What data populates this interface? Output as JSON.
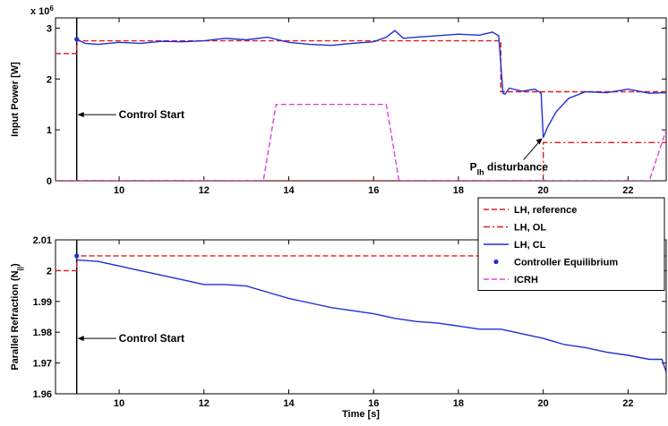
{
  "chart_data": [
    {
      "type": "line",
      "ylabel": "Input Power [W]",
      "y_exponent_label": "x 10",
      "y_exponent_power": "6",
      "xlim": [
        8.5,
        22.9
      ],
      "ylim": [
        0,
        3200000.0
      ],
      "xticks": [
        "10",
        "12",
        "14",
        "16",
        "18",
        "20",
        "22"
      ],
      "yticks": [
        "0",
        "1",
        "2",
        "3"
      ],
      "grid": false,
      "series": [
        {
          "name": "LH, reference",
          "color": "#e41a1c",
          "style": "dashed",
          "x": [
            8.5,
            9.0,
            9.0,
            19.0,
            19.0,
            22.9
          ],
          "y": [
            2500000.0,
            2500000.0,
            2750000.0,
            2750000.0,
            1750000.0,
            1750000.0
          ]
        },
        {
          "name": "LH, OL",
          "color": "#e41a1c",
          "style": "dashdot",
          "x": [
            8.5,
            20.0,
            20.0,
            22.9
          ],
          "y": [
            0,
            0,
            750000.0,
            750000.0
          ]
        },
        {
          "name": "LH, CL",
          "color": "#1f2fd6",
          "style": "solid",
          "x": [
            9.0,
            9.2,
            9.5,
            10.0,
            10.5,
            11.0,
            11.5,
            12.0,
            12.5,
            13.0,
            13.5,
            14.0,
            14.5,
            15.0,
            15.5,
            16.0,
            16.3,
            16.5,
            16.7,
            17.0,
            17.5,
            18.0,
            18.5,
            18.8,
            18.95,
            19.0,
            19.05,
            19.1,
            19.2,
            19.5,
            19.8,
            19.95,
            20.0,
            20.1,
            20.3,
            20.6,
            21.0,
            21.5,
            22.0,
            22.5,
            22.9
          ],
          "y": [
            2780000.0,
            2700000.0,
            2680000.0,
            2720000.0,
            2700000.0,
            2740000.0,
            2730000.0,
            2750000.0,
            2800000.0,
            2770000.0,
            2820000.0,
            2720000.0,
            2680000.0,
            2660000.0,
            2700000.0,
            2730000.0,
            2820000.0,
            2950000.0,
            2800000.0,
            2820000.0,
            2850000.0,
            2880000.0,
            2860000.0,
            2920000.0,
            2850000.0,
            2300000.0,
            1720000.0,
            1700000.0,
            1820000.0,
            1760000.0,
            1800000.0,
            1720000.0,
            850000.0,
            1050000.0,
            1350000.0,
            1620000.0,
            1750000.0,
            1730000.0,
            1800000.0,
            1720000.0,
            1730000.0
          ]
        },
        {
          "name": "ICRH",
          "color": "#e040e0",
          "style": "dashed",
          "x": [
            8.5,
            13.4,
            13.7,
            16.3,
            16.6,
            22.5,
            22.9
          ],
          "y": [
            0,
            0,
            1500000.0,
            1500000.0,
            0,
            0,
            1000000.0
          ]
        }
      ],
      "markers": [
        {
          "name": "Controller Equilibrium",
          "x": 9.0,
          "y": 2780000.0
        }
      ],
      "annotations": [
        {
          "text": "Control Start",
          "x": 9.0,
          "y": 1300000.0
        },
        {
          "text": "P",
          "subscript": "lh",
          "suffix": " disturbance",
          "x": 20.0,
          "y": 870000.0
        }
      ]
    },
    {
      "type": "line",
      "xlabel": "Time [s]",
      "ylabel": "Parallel Refraction (N",
      "ylabel_subscript": "||",
      "ylabel_suffix": ")",
      "xlim": [
        8.5,
        22.9
      ],
      "ylim": [
        1.96,
        2.01
      ],
      "xticks": [
        "10",
        "12",
        "14",
        "16",
        "18",
        "20",
        "22"
      ],
      "yticks": [
        "1.96",
        "1.97",
        "1.98",
        "1.99",
        "2",
        "2.01"
      ],
      "grid": false,
      "series": [
        {
          "name": "LH, reference",
          "color": "#e41a1c",
          "style": "dashed",
          "x": [
            8.5,
            9.0,
            9.0,
            22.9
          ],
          "y": [
            2.0,
            2.0,
            2.0048,
            2.0048
          ]
        },
        {
          "name": "LH, CL",
          "color": "#1f2fd6",
          "style": "solid",
          "x": [
            9.0,
            9.5,
            10.0,
            10.5,
            11.0,
            11.5,
            12.0,
            12.5,
            13.0,
            13.5,
            14.0,
            14.5,
            15.0,
            15.5,
            16.0,
            16.5,
            17.0,
            17.5,
            18.0,
            18.5,
            19.0,
            19.5,
            20.0,
            20.5,
            21.0,
            21.5,
            22.0,
            22.5,
            22.8,
            22.9
          ],
          "y": [
            2.0035,
            2.003,
            2.0015,
            2.0,
            1.9985,
            1.997,
            1.9955,
            1.9955,
            1.995,
            1.993,
            1.991,
            1.9895,
            1.988,
            1.987,
            1.986,
            1.9845,
            1.9835,
            1.983,
            1.982,
            1.981,
            1.981,
            1.9795,
            1.978,
            1.976,
            1.975,
            1.9735,
            1.9725,
            1.9712,
            1.9712,
            1.967
          ]
        }
      ],
      "markers": [
        {
          "name": "Controller Equilibrium",
          "x": 9.0,
          "y": 2.0048
        }
      ],
      "annotations": [
        {
          "text": "Control Start",
          "x": 9.0,
          "y": 1.978
        }
      ]
    }
  ],
  "legend": {
    "placement": "top-right of lower plot",
    "entries": [
      {
        "label": "LH, reference",
        "color": "#e41a1c",
        "style": "dashed"
      },
      {
        "label": "LH, OL",
        "color": "#e41a1c",
        "style": "dashdot"
      },
      {
        "label": "LH, CL",
        "color": "#1f2fd6",
        "style": "solid"
      },
      {
        "label": "Controller Equilibrium",
        "color": "#1f2fd6",
        "style": "marker"
      },
      {
        "label": "ICRH",
        "color": "#e040e0",
        "style": "dashed"
      }
    ]
  }
}
